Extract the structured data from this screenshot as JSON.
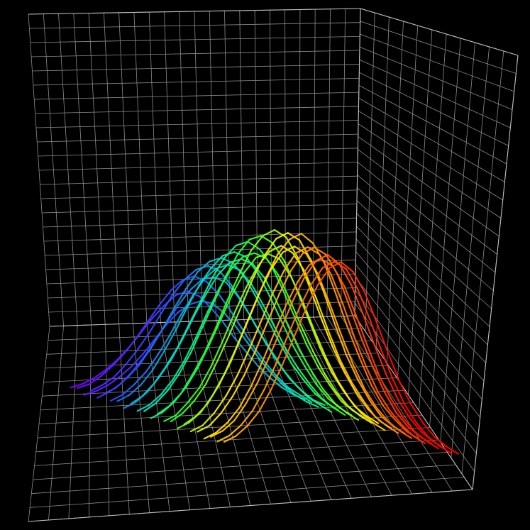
{
  "chart_data": {
    "type": "line",
    "title": "",
    "xlabel": "",
    "ylabel": "",
    "zlabel": "",
    "projection": "3d",
    "grid": true,
    "legend": "none",
    "axis_labels_visible": false,
    "tick_labels_visible": false,
    "background": "#000000",
    "grid_color": "#8c8c8c",
    "colormap": "rainbow",
    "colors": [
      "#7a00ff",
      "#2a4cff",
      "#00e0c0",
      "#28ff2a",
      "#ffee00",
      "#ff7a00",
      "#ff0000"
    ],
    "x": [
      0,
      0.05,
      0.1,
      0.15,
      0.2,
      0.25,
      0.3,
      0.35,
      0.4,
      0.45,
      0.5,
      0.55,
      0.6,
      0.65,
      0.7,
      0.75,
      0.8,
      0.85,
      0.9,
      0.95,
      1
    ],
    "xlim": [
      0,
      1
    ],
    "ylim": [
      0,
      1
    ],
    "zlim": [
      0,
      1
    ],
    "series": [
      {
        "depth": 0.02,
        "color_value": 0.0,
        "values": [
          0.05,
          0.07,
          0.1,
          0.14,
          0.19,
          0.25,
          0.32,
          0.39,
          0.45,
          0.5,
          0.52,
          0.5,
          0.45,
          0.39,
          0.32,
          0.26,
          0.2,
          0.15,
          0.11,
          0.08,
          0.06
        ]
      },
      {
        "depth": 0.06,
        "color_value": 0.03,
        "values": [
          0.06,
          0.08,
          0.12,
          0.17,
          0.23,
          0.3,
          0.38,
          0.46,
          0.53,
          0.58,
          0.6,
          0.58,
          0.53,
          0.46,
          0.38,
          0.3,
          0.23,
          0.17,
          0.12,
          0.09,
          0.06
        ]
      },
      {
        "depth": 0.1,
        "color_value": 0.06,
        "values": [
          0.04,
          0.06,
          0.09,
          0.13,
          0.18,
          0.24,
          0.31,
          0.38,
          0.44,
          0.48,
          0.5,
          0.49,
          0.45,
          0.39,
          0.32,
          0.25,
          0.19,
          0.14,
          0.1,
          0.07,
          0.05
        ]
      },
      {
        "depth": 0.14,
        "color_value": 0.1,
        "values": [
          0.07,
          0.1,
          0.14,
          0.2,
          0.27,
          0.35,
          0.44,
          0.53,
          0.6,
          0.65,
          0.67,
          0.65,
          0.59,
          0.51,
          0.42,
          0.33,
          0.25,
          0.18,
          0.13,
          0.09,
          0.07
        ]
      },
      {
        "depth": 0.18,
        "color_value": 0.14,
        "values": [
          0.05,
          0.08,
          0.12,
          0.18,
          0.25,
          0.33,
          0.42,
          0.5,
          0.57,
          0.62,
          0.63,
          0.61,
          0.55,
          0.47,
          0.38,
          0.3,
          0.22,
          0.16,
          0.11,
          0.08,
          0.05
        ]
      },
      {
        "depth": 0.22,
        "color_value": 0.18,
        "values": [
          0.08,
          0.11,
          0.16,
          0.22,
          0.3,
          0.39,
          0.49,
          0.58,
          0.66,
          0.71,
          0.73,
          0.71,
          0.65,
          0.56,
          0.46,
          0.36,
          0.27,
          0.2,
          0.14,
          0.1,
          0.07
        ]
      },
      {
        "depth": 0.26,
        "color_value": 0.22,
        "values": [
          0.06,
          0.09,
          0.14,
          0.2,
          0.28,
          0.37,
          0.47,
          0.56,
          0.64,
          0.69,
          0.71,
          0.69,
          0.63,
          0.54,
          0.44,
          0.34,
          0.26,
          0.19,
          0.13,
          0.09,
          0.06
        ]
      },
      {
        "depth": 0.3,
        "color_value": 0.27,
        "values": [
          0.07,
          0.1,
          0.15,
          0.22,
          0.31,
          0.41,
          0.52,
          0.62,
          0.7,
          0.76,
          0.78,
          0.76,
          0.69,
          0.59,
          0.48,
          0.37,
          0.28,
          0.2,
          0.14,
          0.1,
          0.07
        ]
      },
      {
        "depth": 0.34,
        "color_value": 0.32,
        "values": [
          0.05,
          0.08,
          0.13,
          0.2,
          0.28,
          0.38,
          0.49,
          0.59,
          0.68,
          0.74,
          0.76,
          0.74,
          0.68,
          0.58,
          0.47,
          0.36,
          0.27,
          0.19,
          0.13,
          0.09,
          0.06
        ]
      },
      {
        "depth": 0.38,
        "color_value": 0.37,
        "values": [
          0.08,
          0.12,
          0.18,
          0.26,
          0.35,
          0.46,
          0.57,
          0.68,
          0.77,
          0.83,
          0.85,
          0.82,
          0.75,
          0.64,
          0.52,
          0.4,
          0.3,
          0.22,
          0.15,
          0.11,
          0.08
        ]
      },
      {
        "depth": 0.42,
        "color_value": 0.42,
        "values": [
          0.06,
          0.09,
          0.14,
          0.21,
          0.3,
          0.41,
          0.53,
          0.64,
          0.73,
          0.79,
          0.81,
          0.79,
          0.72,
          0.61,
          0.49,
          0.38,
          0.28,
          0.2,
          0.14,
          0.1,
          0.07
        ]
      },
      {
        "depth": 0.46,
        "color_value": 0.47,
        "values": [
          0.07,
          0.11,
          0.17,
          0.25,
          0.35,
          0.47,
          0.59,
          0.71,
          0.81,
          0.88,
          0.9,
          0.87,
          0.79,
          0.67,
          0.54,
          0.41,
          0.3,
          0.22,
          0.15,
          0.11,
          0.08
        ]
      },
      {
        "depth": 0.5,
        "color_value": 0.52,
        "values": [
          0.05,
          0.08,
          0.13,
          0.2,
          0.29,
          0.4,
          0.52,
          0.64,
          0.74,
          0.81,
          0.83,
          0.81,
          0.73,
          0.62,
          0.49,
          0.37,
          0.27,
          0.19,
          0.13,
          0.09,
          0.06
        ]
      },
      {
        "depth": 0.54,
        "color_value": 0.57,
        "values": [
          0.08,
          0.12,
          0.18,
          0.27,
          0.37,
          0.49,
          0.62,
          0.74,
          0.85,
          0.92,
          0.95,
          0.92,
          0.83,
          0.7,
          0.56,
          0.43,
          0.32,
          0.23,
          0.16,
          0.11,
          0.08
        ]
      },
      {
        "depth": 0.58,
        "color_value": 0.62,
        "values": [
          0.06,
          0.09,
          0.15,
          0.22,
          0.32,
          0.44,
          0.57,
          0.69,
          0.79,
          0.86,
          0.89,
          0.86,
          0.78,
          0.66,
          0.52,
          0.39,
          0.29,
          0.21,
          0.14,
          0.1,
          0.07
        ]
      },
      {
        "depth": 0.62,
        "color_value": 0.67,
        "values": [
          0.07,
          0.11,
          0.17,
          0.25,
          0.36,
          0.48,
          0.61,
          0.74,
          0.85,
          0.93,
          0.96,
          0.93,
          0.84,
          0.71,
          0.56,
          0.42,
          0.31,
          0.22,
          0.15,
          0.11,
          0.08
        ]
      },
      {
        "depth": 0.66,
        "color_value": 0.72,
        "values": [
          0.05,
          0.08,
          0.13,
          0.21,
          0.31,
          0.43,
          0.56,
          0.69,
          0.8,
          0.88,
          0.91,
          0.88,
          0.79,
          0.66,
          0.52,
          0.39,
          0.28,
          0.2,
          0.14,
          0.1,
          0.07
        ]
      },
      {
        "depth": 0.7,
        "color_value": 0.77,
        "values": [
          0.08,
          0.12,
          0.18,
          0.27,
          0.38,
          0.51,
          0.64,
          0.77,
          0.88,
          0.95,
          0.98,
          0.94,
          0.85,
          0.71,
          0.56,
          0.43,
          0.31,
          0.22,
          0.16,
          0.11,
          0.08
        ]
      },
      {
        "depth": 0.74,
        "color_value": 0.82,
        "values": [
          0.06,
          0.09,
          0.15,
          0.23,
          0.33,
          0.45,
          0.58,
          0.71,
          0.82,
          0.9,
          0.93,
          0.9,
          0.81,
          0.68,
          0.53,
          0.4,
          0.29,
          0.21,
          0.15,
          0.1,
          0.07
        ]
      },
      {
        "depth": 0.78,
        "color_value": 0.86,
        "values": [
          0.07,
          0.1,
          0.16,
          0.24,
          0.34,
          0.46,
          0.59,
          0.72,
          0.83,
          0.91,
          0.94,
          0.91,
          0.82,
          0.68,
          0.54,
          0.41,
          0.3,
          0.21,
          0.15,
          0.11,
          0.08
        ]
      },
      {
        "depth": 0.82,
        "color_value": 0.9,
        "values": [
          0.05,
          0.08,
          0.13,
          0.2,
          0.3,
          0.42,
          0.55,
          0.68,
          0.79,
          0.87,
          0.9,
          0.87,
          0.78,
          0.65,
          0.51,
          0.38,
          0.28,
          0.2,
          0.14,
          0.1,
          0.07
        ]
      },
      {
        "depth": 0.86,
        "color_value": 0.94,
        "values": [
          0.07,
          0.1,
          0.15,
          0.23,
          0.33,
          0.45,
          0.58,
          0.71,
          0.82,
          0.9,
          0.93,
          0.89,
          0.8,
          0.67,
          0.53,
          0.4,
          0.29,
          0.21,
          0.15,
          0.11,
          0.08
        ]
      },
      {
        "depth": 0.9,
        "color_value": 0.97,
        "values": [
          0.06,
          0.09,
          0.14,
          0.21,
          0.31,
          0.43,
          0.56,
          0.69,
          0.8,
          0.88,
          0.91,
          0.88,
          0.79,
          0.66,
          0.52,
          0.39,
          0.28,
          0.2,
          0.14,
          0.1,
          0.07
        ]
      },
      {
        "depth": 0.94,
        "color_value": 1.0,
        "values": [
          0.07,
          0.1,
          0.15,
          0.22,
          0.32,
          0.44,
          0.57,
          0.7,
          0.81,
          0.89,
          0.92,
          0.88,
          0.79,
          0.66,
          0.52,
          0.39,
          0.29,
          0.21,
          0.15,
          0.11,
          0.08
        ]
      }
    ]
  }
}
